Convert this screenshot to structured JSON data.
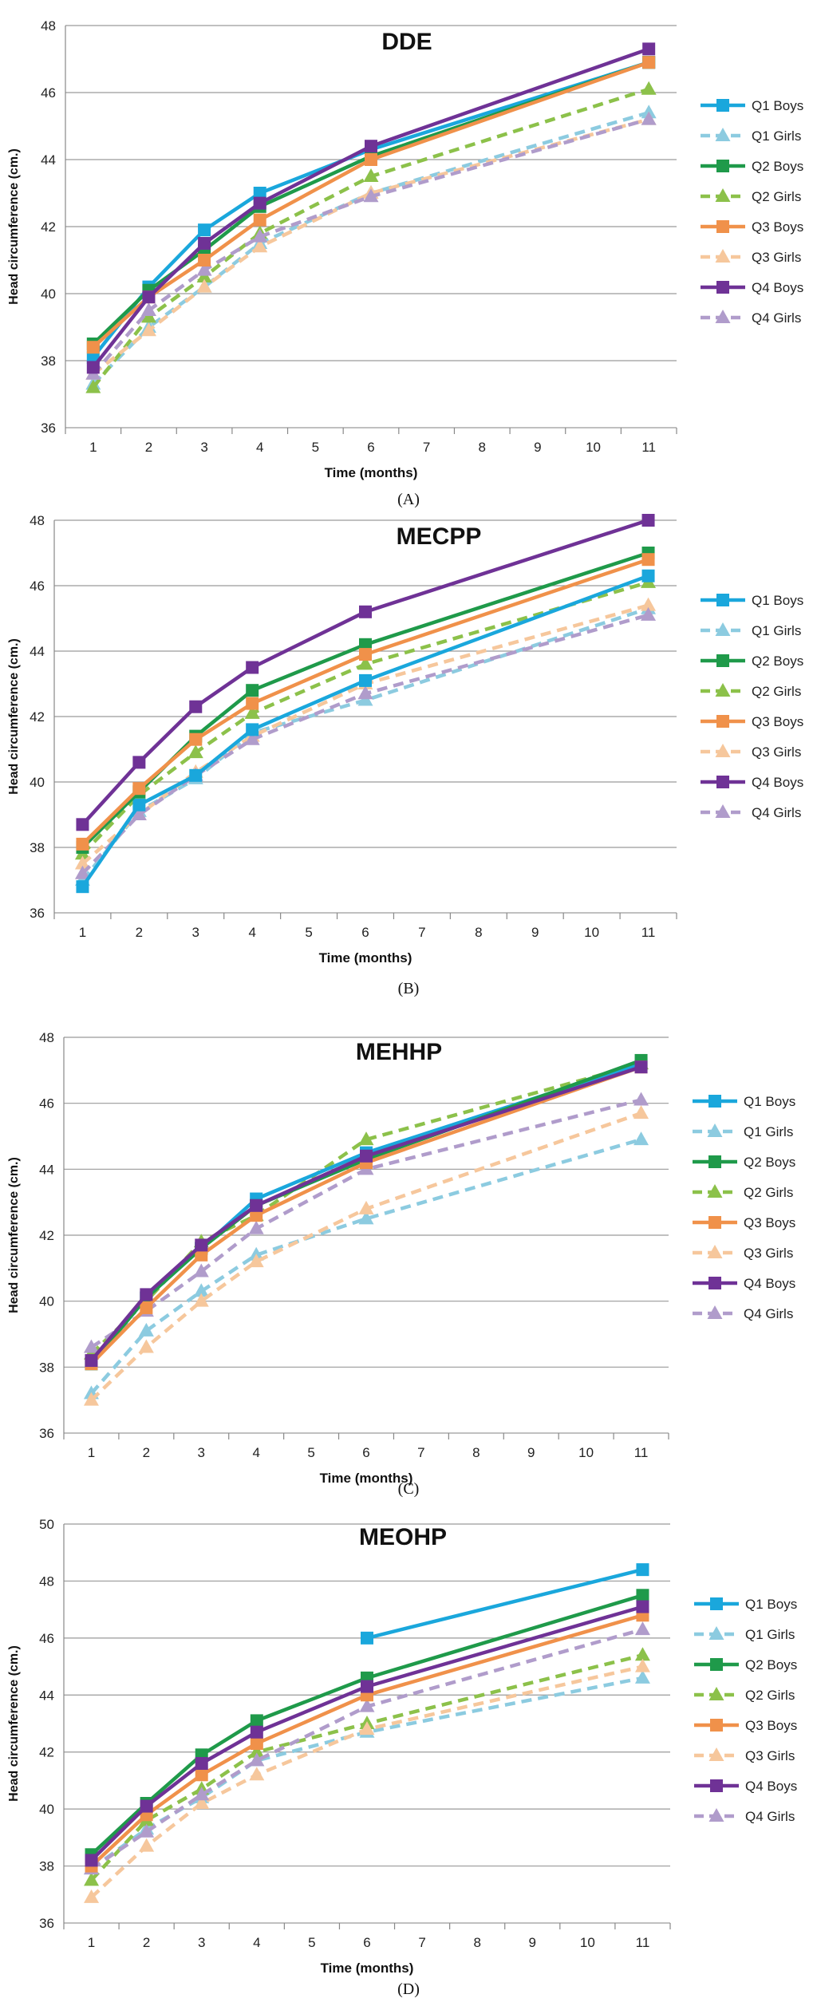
{
  "chart_data": [
    {
      "type": "line",
      "panel_label": "(A)",
      "title": "DDE",
      "xlabel": "Time (months)",
      "ylabel": "Head circumference (cm.)",
      "ylim": [
        36,
        48
      ],
      "yticks": [
        "36",
        "38",
        "40",
        "42",
        "44",
        "46",
        "48"
      ],
      "categories": [
        "1",
        "2",
        "3",
        "4",
        "5",
        "6",
        "7",
        "8",
        "9",
        "10",
        "11"
      ],
      "x": [
        1,
        2,
        3,
        4,
        6,
        11
      ],
      "grid": true,
      "legend": "right",
      "series": [
        {
          "name": "Q1 Boys",
          "values": [
            38.1,
            40.2,
            41.9,
            43.0,
            44.3,
            46.9
          ]
        },
        {
          "name": "Q1 Girls",
          "values": [
            37.3,
            39.0,
            40.2,
            41.5,
            43.0,
            45.4
          ]
        },
        {
          "name": "Q2 Boys",
          "values": [
            38.5,
            40.1,
            41.3,
            42.6,
            44.1,
            46.9
          ]
        },
        {
          "name": "Q2 Girls",
          "values": [
            37.2,
            39.3,
            40.5,
            41.8,
            43.5,
            46.1
          ]
        },
        {
          "name": "Q3 Boys",
          "values": [
            38.4,
            39.9,
            41.0,
            42.2,
            44.0,
            46.9
          ]
        },
        {
          "name": "Q3 Girls",
          "values": [
            37.6,
            38.9,
            40.2,
            41.4,
            43.0,
            45.2
          ]
        },
        {
          "name": "Q4 Boys",
          "values": [
            37.8,
            39.9,
            41.5,
            42.7,
            44.4,
            47.3
          ]
        },
        {
          "name": "Q4 Girls",
          "values": [
            37.6,
            39.5,
            40.7,
            41.7,
            42.9,
            45.2
          ]
        }
      ]
    },
    {
      "type": "line",
      "panel_label": "(B)",
      "title": "MECPP",
      "xlabel": "Time (months)",
      "ylabel": "Head circumference (cm.)",
      "ylim": [
        36,
        48
      ],
      "yticks": [
        "36",
        "38",
        "40",
        "42",
        "44",
        "46",
        "48"
      ],
      "categories": [
        "1",
        "2",
        "3",
        "4",
        "5",
        "6",
        "7",
        "8",
        "9",
        "10",
        "11"
      ],
      "x": [
        1,
        2,
        3,
        4,
        6,
        11
      ],
      "grid": true,
      "legend": "right",
      "series": [
        {
          "name": "Q1 Boys",
          "values": [
            36.8,
            39.3,
            40.2,
            41.6,
            43.1,
            46.3
          ]
        },
        {
          "name": "Q1 Girls",
          "values": [
            37.0,
            39.1,
            40.1,
            41.5,
            42.5,
            45.3
          ]
        },
        {
          "name": "Q2 Boys",
          "values": [
            38.0,
            39.7,
            41.4,
            42.8,
            44.2,
            47.0
          ]
        },
        {
          "name": "Q2 Girls",
          "values": [
            37.8,
            39.6,
            40.9,
            42.1,
            43.6,
            46.1
          ]
        },
        {
          "name": "Q3 Boys",
          "values": [
            38.1,
            39.8,
            41.3,
            42.4,
            43.9,
            46.8
          ]
        },
        {
          "name": "Q3 Girls",
          "values": [
            37.5,
            39.0,
            40.3,
            41.4,
            43.0,
            45.4
          ]
        },
        {
          "name": "Q4 Boys",
          "values": [
            38.7,
            40.6,
            42.3,
            43.5,
            45.2,
            48.0
          ]
        },
        {
          "name": "Q4 Girls",
          "values": [
            37.2,
            39.0,
            40.2,
            41.3,
            42.7,
            45.1
          ]
        }
      ]
    },
    {
      "type": "line",
      "panel_label": "(C)",
      "title": "MEHHP",
      "xlabel": "Time (months)",
      "ylabel": "Head circumference (cm.)",
      "ylim": [
        36,
        48
      ],
      "yticks": [
        "36",
        "38",
        "40",
        "42",
        "44",
        "46",
        "48"
      ],
      "categories": [
        "1",
        "2",
        "3",
        "4",
        "5",
        "6",
        "7",
        "8",
        "9",
        "10",
        "11"
      ],
      "x": [
        1,
        2,
        3,
        4,
        6,
        11
      ],
      "grid": true,
      "legend": "right",
      "series": [
        {
          "name": "Q1 Boys",
          "values": [
            38.1,
            40.1,
            41.6,
            43.1,
            44.5,
            47.2
          ]
        },
        {
          "name": "Q1 Girls",
          "values": [
            37.2,
            39.1,
            40.3,
            41.4,
            42.5,
            44.9
          ]
        },
        {
          "name": "Q2 Boys",
          "values": [
            38.1,
            40.1,
            41.6,
            42.9,
            44.3,
            47.3
          ]
        },
        {
          "name": "Q2 Girls",
          "values": [
            38.4,
            40.0,
            41.8,
            42.6,
            44.9,
            47.2
          ]
        },
        {
          "name": "Q3 Boys",
          "values": [
            38.1,
            39.8,
            41.4,
            42.6,
            44.2,
            47.1
          ]
        },
        {
          "name": "Q3 Girls",
          "values": [
            37.0,
            38.6,
            40.0,
            41.2,
            42.8,
            45.7
          ]
        },
        {
          "name": "Q4 Boys",
          "values": [
            38.2,
            40.2,
            41.7,
            42.9,
            44.4,
            47.1
          ]
        },
        {
          "name": "Q4 Girls",
          "values": [
            38.6,
            39.7,
            40.9,
            42.2,
            44.0,
            46.1
          ]
        }
      ]
    },
    {
      "type": "line",
      "panel_label": "(D)",
      "title": "MEOHP",
      "xlabel": "Time (months)",
      "ylabel": "Head circumference (cm.)",
      "ylim": [
        36,
        50
      ],
      "yticks": [
        "36",
        "38",
        "40",
        "42",
        "44",
        "46",
        "48",
        "50"
      ],
      "categories": [
        "1",
        "2",
        "3",
        "4",
        "5",
        "6",
        "7",
        "8",
        "9",
        "10",
        "11"
      ],
      "x": [
        1,
        2,
        3,
        4,
        6,
        11
      ],
      "grid": true,
      "legend": "right",
      "series": [
        {
          "name": "Q1 Boys",
          "values": [
            null,
            null,
            null,
            null,
            46.0,
            48.4
          ]
        },
        {
          "name": "Q1 Girls",
          "values": [
            37.9,
            39.3,
            40.4,
            41.7,
            42.7,
            44.6
          ]
        },
        {
          "name": "Q2 Boys",
          "values": [
            38.4,
            40.2,
            41.9,
            43.1,
            44.6,
            47.5
          ]
        },
        {
          "name": "Q2 Girls",
          "values": [
            37.5,
            39.6,
            40.7,
            42.0,
            43.0,
            45.4
          ]
        },
        {
          "name": "Q3 Boys",
          "values": [
            38.0,
            39.8,
            41.2,
            42.3,
            44.0,
            46.8
          ]
        },
        {
          "name": "Q3 Girls",
          "values": [
            36.9,
            38.7,
            40.2,
            41.2,
            42.8,
            45.0
          ]
        },
        {
          "name": "Q4 Boys",
          "values": [
            38.2,
            40.1,
            41.6,
            42.7,
            44.3,
            47.1
          ]
        },
        {
          "name": "Q4 Girls",
          "values": [
            37.9,
            39.2,
            40.5,
            41.7,
            43.6,
            46.3
          ]
        }
      ]
    }
  ],
  "series_style": {
    "Q1 Boys": {
      "color": "#1aa7dc",
      "dashed": false,
      "marker": "square"
    },
    "Q1 Girls": {
      "color": "#8ccbe0",
      "dashed": true,
      "marker": "triangle"
    },
    "Q2 Boys": {
      "color": "#1f9a4a",
      "dashed": false,
      "marker": "square"
    },
    "Q2 Girls": {
      "color": "#8cc14a",
      "dashed": true,
      "marker": "triangle"
    },
    "Q3 Boys": {
      "color": "#f0914a",
      "dashed": false,
      "marker": "square"
    },
    "Q3 Girls": {
      "color": "#f6c79c",
      "dashed": true,
      "marker": "triangle"
    },
    "Q4 Boys": {
      "color": "#6f3296",
      "dashed": false,
      "marker": "square"
    },
    "Q4 Girls": {
      "color": "#b09ccb",
      "dashed": true,
      "marker": "triangle"
    }
  }
}
